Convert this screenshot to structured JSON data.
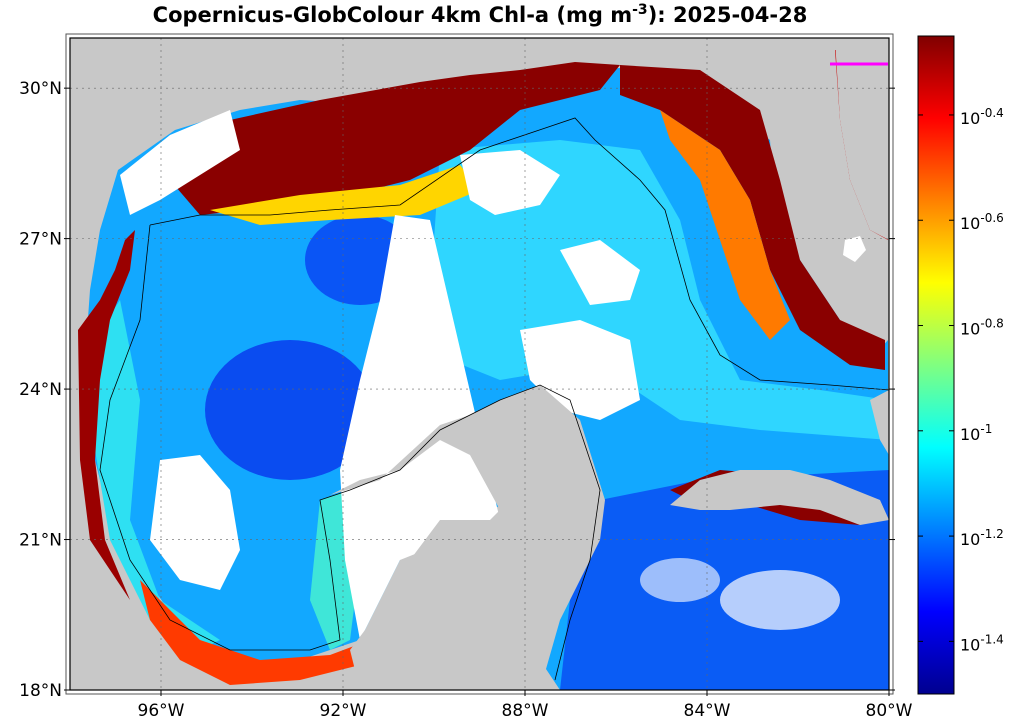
{
  "title": {
    "prefix": "Copernicus-GlobColour 4km Chl-a (mg m",
    "exponent": "-3",
    "suffix": "): 2025-04-28"
  },
  "map": {
    "lon_range": [
      -98,
      -80
    ],
    "lat_range": [
      18,
      31
    ],
    "lon_ticks": [
      {
        "value": -96,
        "label": "96°W"
      },
      {
        "value": -92,
        "label": "92°W"
      },
      {
        "value": -88,
        "label": "88°W"
      },
      {
        "value": -84,
        "label": "84°W"
      },
      {
        "value": -80,
        "label": "80°W"
      }
    ],
    "lat_ticks": [
      {
        "value": 18,
        "label": "18°N"
      },
      {
        "value": 21,
        "label": "21°N"
      },
      {
        "value": 24,
        "label": "24°N"
      },
      {
        "value": 27,
        "label": "27°N"
      },
      {
        "value": 30,
        "label": "30°N"
      }
    ],
    "grid": true,
    "land_color": "#c8c8c8",
    "nodata_color": "#ffffff",
    "coast_color": "#000000"
  },
  "colorbar": {
    "scale": "log10",
    "range": [
      -1.5,
      -0.25
    ],
    "ticks": [
      {
        "value": -0.4,
        "base": "10",
        "exp": "-0.4"
      },
      {
        "value": -0.6,
        "base": "10",
        "exp": "-0.6"
      },
      {
        "value": -0.8,
        "base": "10",
        "exp": "-0.8"
      },
      {
        "value": -1.0,
        "base": "10",
        "exp": "-1"
      },
      {
        "value": -1.2,
        "base": "10",
        "exp": "-1.2"
      },
      {
        "value": -1.4,
        "base": "10",
        "exp": "-1.4"
      }
    ],
    "colormap": "jet",
    "colors": [
      "#00008f",
      "#0000ff",
      "#0080ff",
      "#00ffff",
      "#80ff80",
      "#ffff00",
      "#ff8000",
      "#ff0000",
      "#800000"
    ]
  },
  "marker_color": "#ff00ff"
}
